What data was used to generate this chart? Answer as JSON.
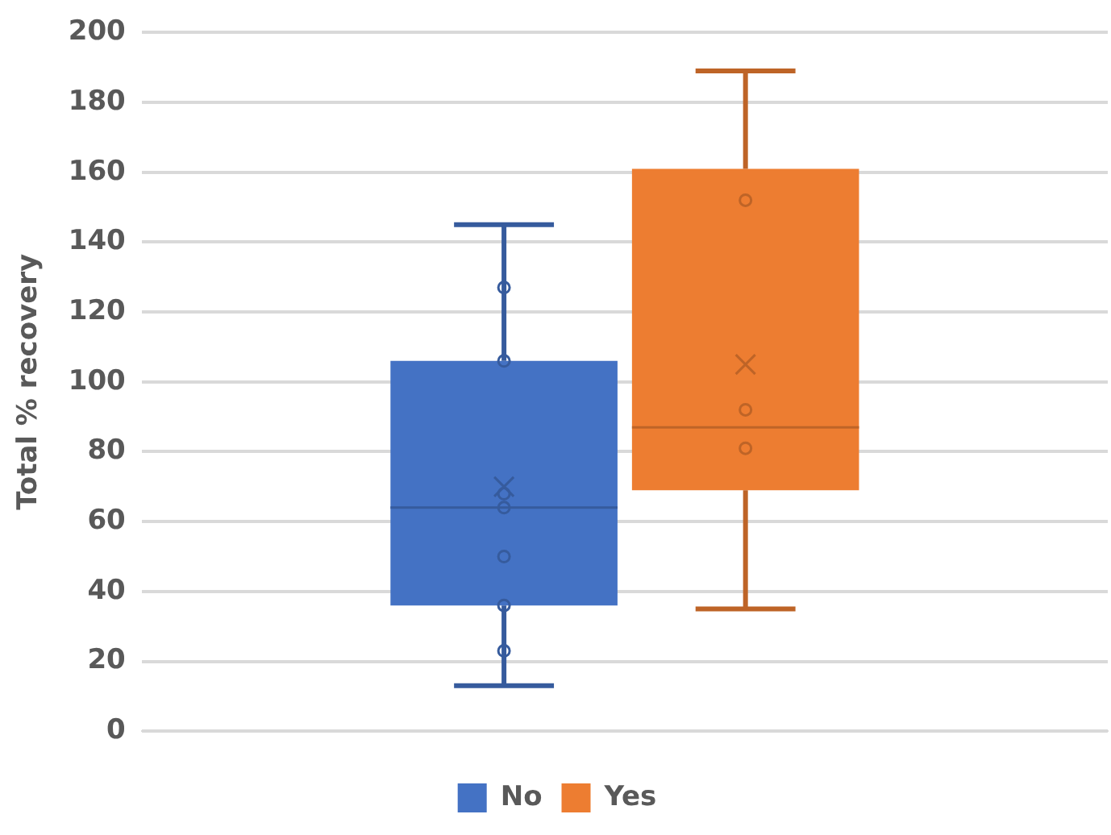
{
  "chart_data": {
    "type": "box",
    "ylabel": "Total % recovery",
    "categories": [
      null
    ],
    "series": [
      {
        "name": "No",
        "color": "#4472c4",
        "boxes": [
          {
            "low": 13,
            "q1": 36,
            "median": 64,
            "q3": 106,
            "high": 145,
            "mean": 70,
            "outliers": [
              127,
              106,
              68,
              64,
              50,
              36,
              23
            ]
          }
        ]
      },
      {
        "name": "Yes",
        "color": "#ed7d31",
        "boxes": [
          {
            "low": 35,
            "q1": 69,
            "median": 87,
            "q3": 161,
            "high": 189,
            "mean": 105,
            "outliers": [
              152,
              92,
              81
            ]
          }
        ]
      }
    ],
    "ylim": [
      0,
      200
    ],
    "yticks": [
      0,
      20,
      40,
      60,
      80,
      100,
      120,
      140,
      160,
      180,
      200
    ],
    "grid": "y",
    "legend": "bottom",
    "marker": "circle"
  }
}
